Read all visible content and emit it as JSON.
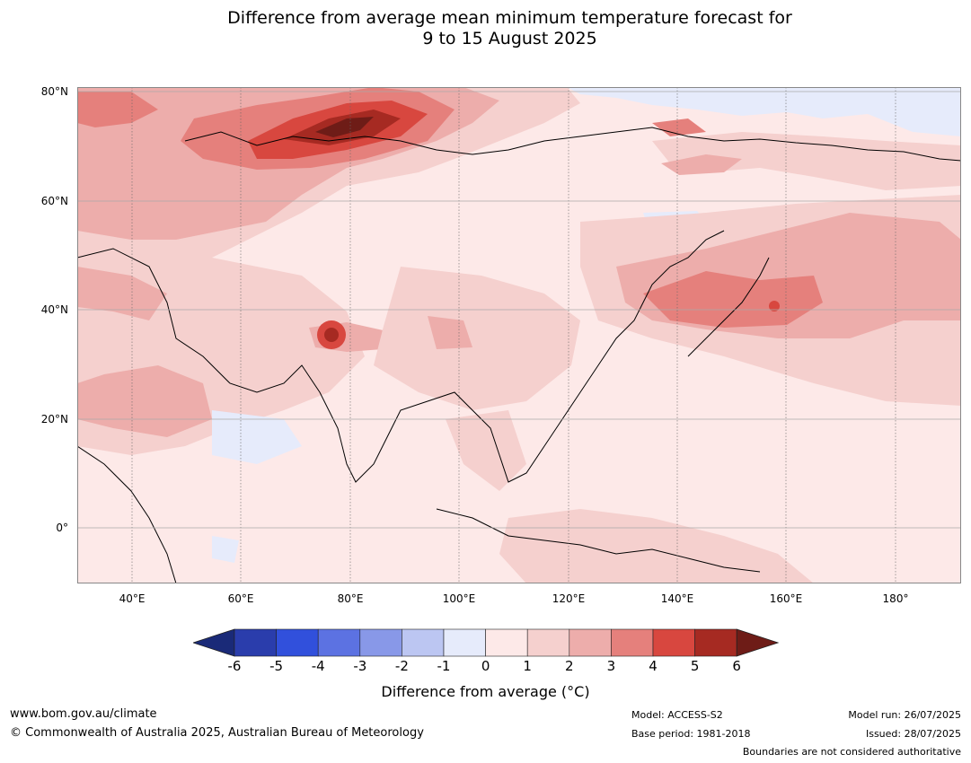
{
  "title_line1": "Difference from average mean minimum temperature forecast for",
  "title_line2": "9 to 15 August 2025",
  "lat_labels": [
    "80°N",
    "60°N",
    "40°N",
    "20°N",
    "0°"
  ],
  "lon_labels": [
    "40°E",
    "60°E",
    "80°E",
    "100°E",
    "120°E",
    "140°E",
    "160°E",
    "180°"
  ],
  "colorbar": {
    "ticks": [
      "-6",
      "-5",
      "-4",
      "-3",
      "-2",
      "-1",
      "0",
      "1",
      "2",
      "3",
      "4",
      "5",
      "6"
    ],
    "colors": [
      "#1a2a78",
      "#2a3dac",
      "#3150dc",
      "#5c72e2",
      "#8898e8",
      "#bcc6f2",
      "#e6ebfb",
      "#fde9e8",
      "#f5d0ce",
      "#edadab",
      "#e5807c",
      "#d8473f",
      "#a62a22",
      "#6e1c17"
    ],
    "label": "Difference from average (°C)"
  },
  "footer": {
    "url": "www.bom.gov.au/climate",
    "copyright": "© Commonwealth of Australia 2025, Australian Bureau of Meteorology",
    "model": "Model: ACCESS-S2",
    "base_period": "Base period: 1981-2018",
    "model_run": "Model run: 26/07/2025",
    "issued": "Issued: 28/07/2025",
    "disclaimer": "Boundaries are not considered authoritative"
  }
}
